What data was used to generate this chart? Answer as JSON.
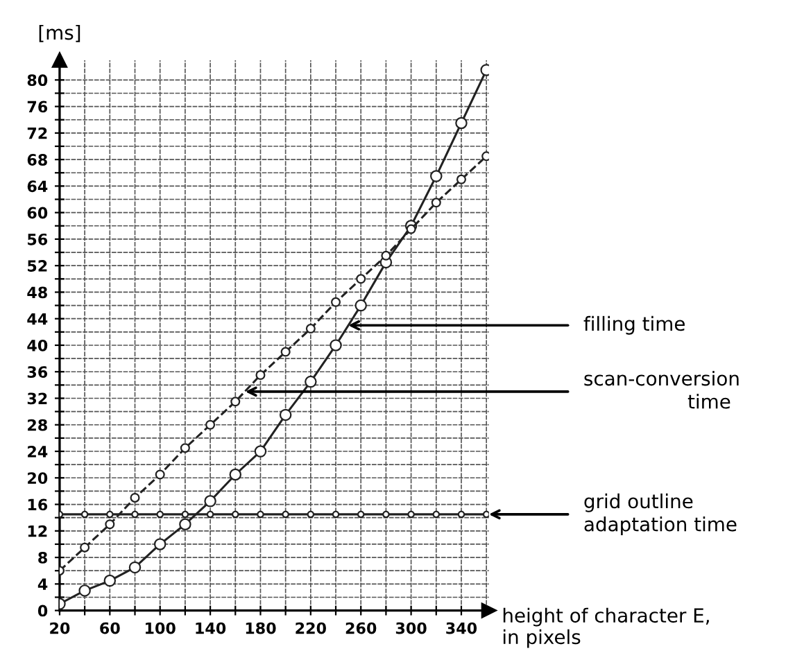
{
  "chart_data": {
    "type": "line",
    "ylabel": "[ms]",
    "xlabel": "height of character E,\nin pixels",
    "x": [
      20,
      40,
      60,
      80,
      100,
      120,
      140,
      160,
      180,
      200,
      220,
      240,
      260,
      280,
      300,
      320,
      340,
      360
    ],
    "series": [
      {
        "color": "#222222",
        "line_style": "solid",
        "marker": "circle",
        "values": [
          1,
          3,
          4.5,
          6.5,
          10,
          13,
          16.5,
          20.5,
          24,
          29.5,
          34.5,
          40,
          46,
          52.5,
          58,
          65.5,
          73.5,
          81.5
        ]
      },
      {
        "color": "#222222",
        "line_style": "dashed",
        "marker": "circle",
        "values": [
          6,
          9.5,
          13,
          17,
          20.5,
          24.5,
          28,
          31.5,
          35.5,
          39,
          42.5,
          46.5,
          50,
          53.5,
          57.5,
          61.5,
          65,
          68.5
        ]
      },
      {
        "color": "#222222",
        "line_style": "solid",
        "marker": "circle",
        "values": [
          14.5,
          14.5,
          14.5,
          14.5,
          14.5,
          14.5,
          14.5,
          14.5,
          14.5,
          14.5,
          14.5,
          14.5,
          14.5,
          14.5,
          14.5,
          14.5,
          14.5,
          14.5
        ]
      }
    ],
    "xlim": [
      20,
      362
    ],
    "ylim": [
      0,
      83
    ],
    "xticks": [
      20,
      {
        "value": 40,
        "label": null
      },
      60,
      {
        "value": 80,
        "label": null
      },
      100,
      {
        "value": 120,
        "label": null
      },
      140,
      {
        "value": 160,
        "label": null
      },
      180,
      {
        "value": 200,
        "label": null
      },
      220,
      {
        "value": 240,
        "label": null
      },
      260,
      {
        "value": 280,
        "label": null
      },
      300,
      {
        "value": 320,
        "label": null
      },
      340,
      {
        "value": 360,
        "label": null
      }
    ],
    "yticks": [
      0,
      {
        "value": 2,
        "label": null
      },
      4,
      {
        "value": 6,
        "label": null
      },
      8,
      {
        "value": 10,
        "label": null
      },
      12,
      {
        "value": 14,
        "label": null
      },
      16,
      {
        "value": 18,
        "label": null
      },
      20,
      {
        "value": 22,
        "label": null
      },
      24,
      {
        "value": 26,
        "label": null
      },
      28,
      {
        "value": 30,
        "label": null
      },
      32,
      {
        "value": 34,
        "label": null
      },
      36,
      {
        "value": 38,
        "label": null
      },
      40,
      {
        "value": 42,
        "label": null
      },
      44,
      {
        "value": 46,
        "label": null
      },
      48,
      {
        "value": 50,
        "label": null
      },
      52,
      {
        "value": 54,
        "label": null
      },
      56,
      {
        "value": 58,
        "label": null
      },
      60,
      {
        "value": 62,
        "label": null
      },
      64,
      {
        "value": 66,
        "label": null
      },
      68,
      {
        "value": 70,
        "label": null
      },
      72,
      {
        "value": 74,
        "label": null
      },
      76,
      {
        "value": 78,
        "label": null
      },
      80
    ],
    "grid": true,
    "annotations": [
      {
        "text": "filling time",
        "x": 250,
        "y": 43
      },
      {
        "text": "scan-conversion\n                 time",
        "x": 168,
        "y": 33
      },
      {
        "text": "grid outline\nadaptation time",
        "x": 362,
        "y": 14.5
      }
    ]
  }
}
